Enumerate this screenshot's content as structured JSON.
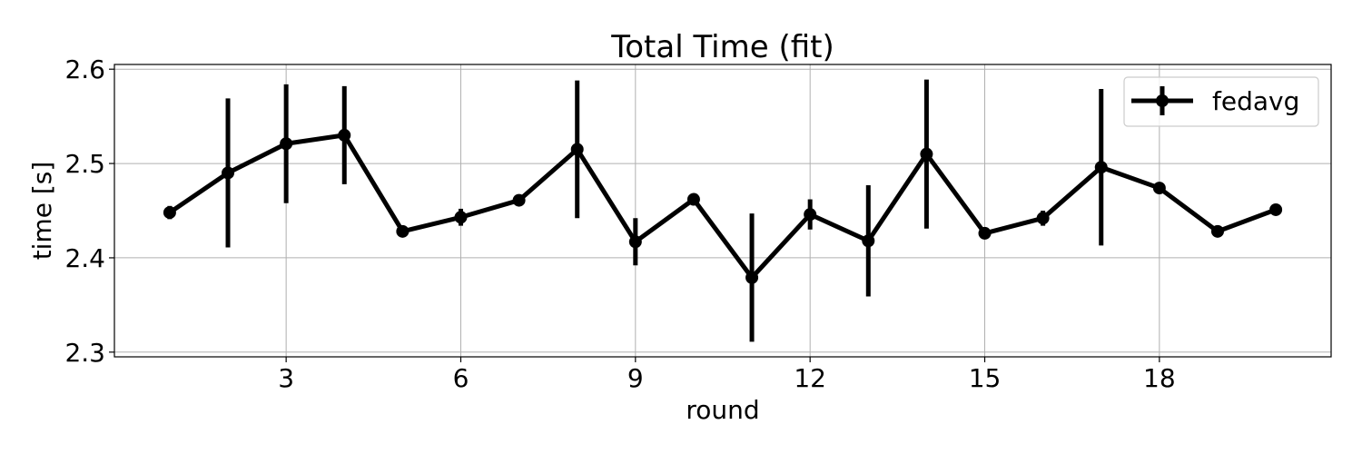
{
  "chart_data": {
    "type": "line",
    "title": "Total Time (fit)",
    "xlabel": "round",
    "ylabel": "time [s]",
    "xlim": [
      0.05,
      20.95
    ],
    "ylim": [
      2.295,
      2.605
    ],
    "xticks": [
      3,
      6,
      9,
      12,
      15,
      18
    ],
    "xtick_labels": [
      "3",
      "6",
      "9",
      "12",
      "15",
      "18"
    ],
    "yticks": [
      2.3,
      2.4,
      2.5,
      2.6
    ],
    "ytick_labels": [
      "2.3",
      "2.4",
      "2.5",
      "2.6"
    ],
    "grid": true,
    "legend_position": "top-right",
    "series": [
      {
        "name": "fedavg",
        "color": "#000000",
        "marker": "circle",
        "x": [
          1,
          2,
          3,
          4,
          5,
          6,
          7,
          8,
          9,
          10,
          11,
          12,
          13,
          14,
          15,
          16,
          17,
          18,
          19,
          20
        ],
        "y": [
          2.448,
          2.49,
          2.521,
          2.53,
          2.428,
          2.443,
          2.461,
          2.515,
          2.417,
          2.462,
          2.379,
          2.446,
          2.418,
          2.51,
          2.426,
          2.442,
          2.496,
          2.474,
          2.428,
          2.451
        ],
        "error": [
          0.007,
          0.079,
          0.063,
          0.052,
          0.003,
          0.009,
          0.005,
          0.073,
          0.025,
          0.003,
          0.068,
          0.016,
          0.059,
          0.079,
          0.004,
          0.008,
          0.083,
          0.003,
          0.003,
          0.003
        ]
      }
    ]
  }
}
